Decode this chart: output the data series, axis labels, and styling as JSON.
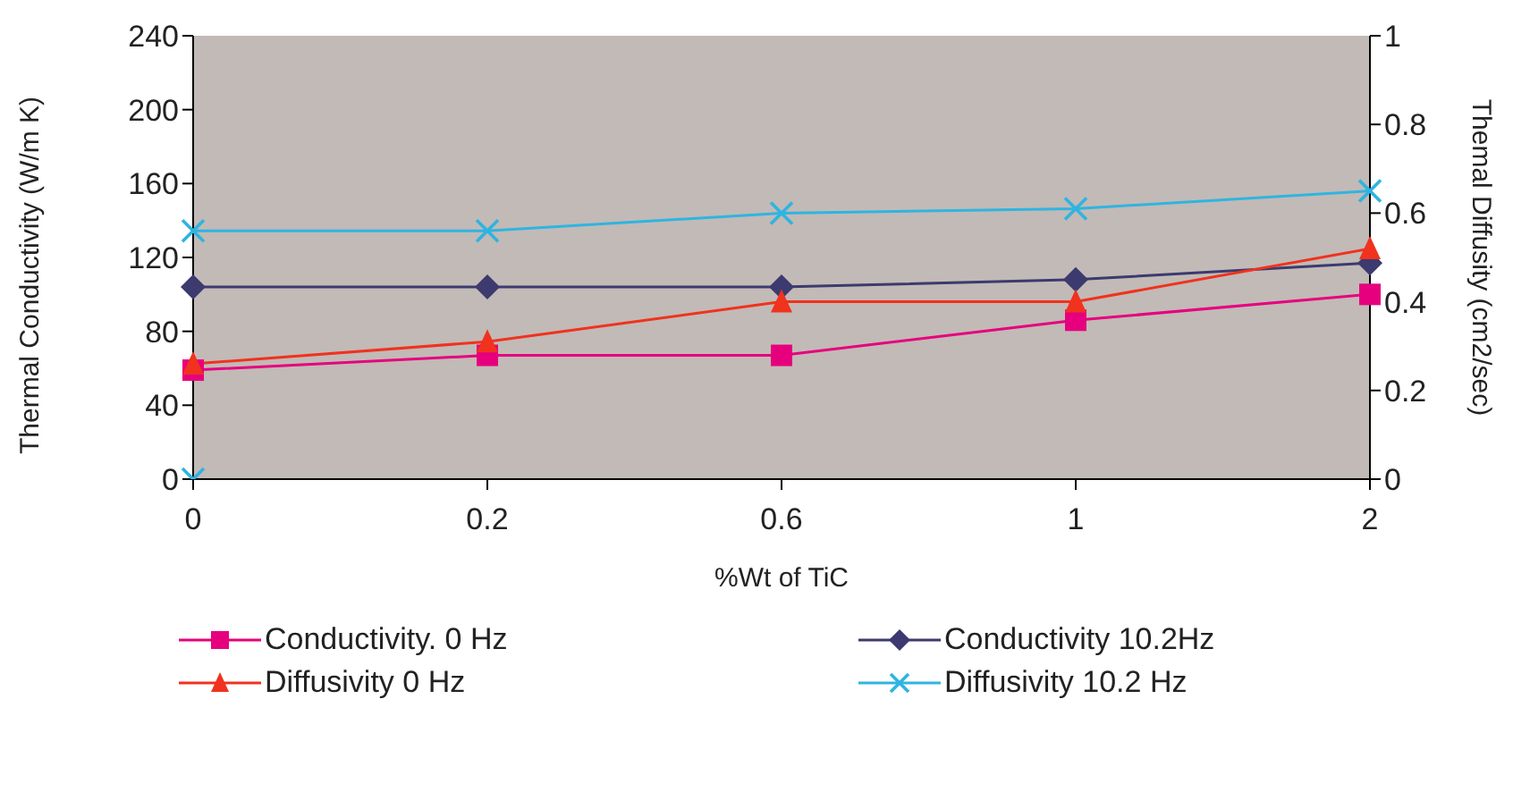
{
  "chart_data": {
    "type": "line",
    "xlabel": "%Wt of TiC",
    "ylabel": "Thermal Conductivity (W/m K)",
    "y2label": "Themal Diffusity (cm2/sec)",
    "categories": [
      "0",
      "0.2",
      "0.6",
      "1",
      "2"
    ],
    "ylim": [
      0,
      240
    ],
    "yticks": [
      0,
      40,
      80,
      120,
      160,
      200,
      240
    ],
    "y2lim": [
      0,
      1
    ],
    "y2ticks": [
      0,
      0.2,
      0.4,
      0.6,
      0.8,
      1
    ],
    "legend": "bottom",
    "series": [
      {
        "name": "Conductivity. 0 Hz",
        "color": "#e6007e",
        "marker": "square",
        "values": [
          59,
          67,
          67,
          86,
          100
        ]
      },
      {
        "name": "Conductivity 10.2Hz",
        "color": "#3c3a6e",
        "marker": "diamond",
        "values": [
          104,
          104,
          104,
          108,
          117
        ]
      },
      {
        "name": "Diffusivity 0 Hz",
        "color": "#f0321e",
        "marker": "triangle",
        "axis": "y2",
        "values": [
          0.26,
          0.31,
          0.4,
          0.4,
          0.52
        ]
      },
      {
        "name": "Diffusivity 10.2 Hz",
        "color": "#2fb4e0",
        "marker": "cross",
        "axis": "y2",
        "values": [
          0.56,
          0.56,
          0.6,
          0.61,
          0.65
        ]
      },
      {
        "type": "scatter",
        "color": "#2fb4e0",
        "marker": "cross",
        "axis": "y2",
        "values": [
          0,
          null,
          null,
          null,
          null
        ]
      }
    ]
  }
}
